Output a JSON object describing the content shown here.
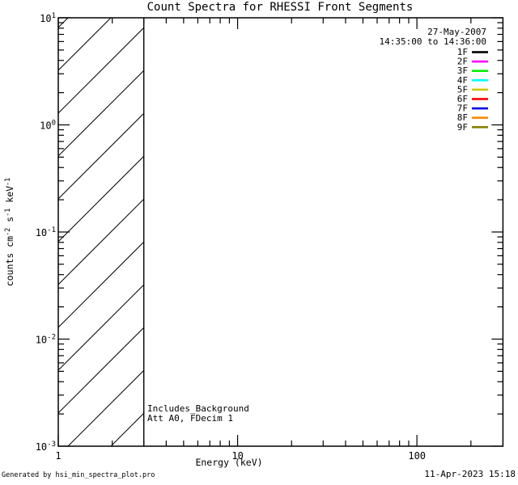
{
  "title": "Count Spectra for RHESSI Front Segments",
  "header": {
    "date": "27-May-2007",
    "time_range": "14:35:00 to 14:36:00"
  },
  "legend": {
    "items": [
      {
        "label": "1F",
        "color": "#000000"
      },
      {
        "label": "2F",
        "color": "#ff00ff"
      },
      {
        "label": "3F",
        "color": "#00ee00"
      },
      {
        "label": "4F",
        "color": "#00ffff"
      },
      {
        "label": "5F",
        "color": "#d4c400"
      },
      {
        "label": "6F",
        "color": "#ff0000"
      },
      {
        "label": "7F",
        "color": "#0000ee"
      },
      {
        "label": "8F",
        "color": "#ff8800"
      },
      {
        "label": "9F",
        "color": "#8a7e00"
      }
    ]
  },
  "plot": {
    "annotations": {
      "line1": "Includes_Background",
      "line2": "Att A0, FDecim 1"
    },
    "xaxis": {
      "label": "Energy (keV)",
      "tick_labels": [
        "1",
        "10",
        "100"
      ]
    },
    "yaxis": {
      "tick_base": "10",
      "tick_exps": [
        "1",
        "0",
        "-1",
        "-2",
        "-3"
      ],
      "label_parts": {
        "p1": "counts cm",
        "s1": "-2",
        "p2": " s",
        "s2": "-1",
        "p3": " keV",
        "s3": "-1"
      }
    }
  },
  "footer": {
    "left": "Generated by hsi_min_spectra_plot.pro",
    "right": "11-Apr-2023 15:18"
  },
  "chart_data": {
    "type": "line",
    "title": "Count Spectra for RHESSI Front Segments",
    "xlabel": "Energy (keV)",
    "ylabel": "counts cm^-2 s^-1 keV^-1",
    "xscale": "log",
    "yscale": "log",
    "xlim": [
      1,
      300
    ],
    "ylim": [
      0.001,
      10
    ],
    "xticks": [
      1,
      10,
      100
    ],
    "yticks": [
      10,
      1,
      0.1,
      0.01,
      0.001
    ],
    "grid": false,
    "legend_position": "upper right",
    "date_label": "27-May-2007",
    "time_interval": "14:35:00 to 14:36:00",
    "series": [
      {
        "name": "1F",
        "color": "#000000",
        "x": [],
        "y": []
      },
      {
        "name": "2F",
        "color": "#ff00ff",
        "x": [],
        "y": []
      },
      {
        "name": "3F",
        "color": "#00ee00",
        "x": [],
        "y": []
      },
      {
        "name": "4F",
        "color": "#00ffff",
        "x": [],
        "y": []
      },
      {
        "name": "5F",
        "color": "#d4c400",
        "x": [],
        "y": []
      },
      {
        "name": "6F",
        "color": "#ff0000",
        "x": [],
        "y": []
      },
      {
        "name": "7F",
        "color": "#0000ee",
        "x": [],
        "y": []
      },
      {
        "name": "8F",
        "color": "#ff8800",
        "x": [],
        "y": []
      },
      {
        "name": "9F",
        "color": "#8a7e00",
        "x": [],
        "y": []
      }
    ],
    "note": "No spectra curves are drawn; plot area is empty except a diagonally hatched exclusion band.",
    "hatched_region": {
      "x_range": [
        1,
        3
      ],
      "style": "diagonal-hatch",
      "meaning": "excluded low-energy band"
    },
    "annotations": [
      "Includes_Background",
      "Att A0, FDecim 1"
    ]
  }
}
